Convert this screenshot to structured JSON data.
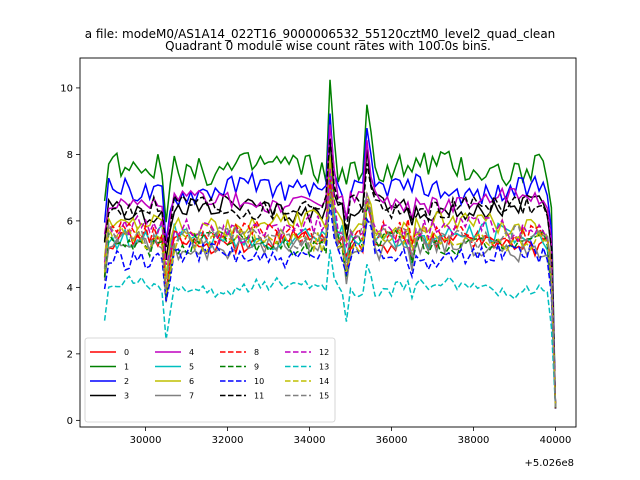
{
  "figure": {
    "suptitle": "a file: modeM0/AS1A14_022T16_9000006532_55120cztM0_level2_quad_clean",
    "x_offset_label": "+5.026e8"
  },
  "chart_data": {
    "type": "line",
    "title": "Quadrant 0 module wise count rates with 100.0s bins.",
    "xlabel": "",
    "ylabel": "",
    "xlim": [
      28400,
      40500
    ],
    "ylim": [
      -0.2,
      10.9
    ],
    "x_ticks": [
      30000,
      32000,
      34000,
      36000,
      38000,
      40000
    ],
    "x_tick_labels": [
      "30000",
      "32000",
      "34000",
      "36000",
      "38000",
      "40000"
    ],
    "y_ticks": [
      0,
      2,
      4,
      6,
      8,
      10
    ],
    "y_tick_labels": [
      "0",
      "2",
      "4",
      "6",
      "8",
      "10"
    ],
    "x_start": 29000,
    "x_step": 100,
    "legend": {
      "location": "lower-left",
      "columns": 4
    },
    "series": [
      {
        "name": "0",
        "color": "#ff0000",
        "dash": "solid",
        "base": 5.35,
        "amp": 0.25,
        "seed": 3
      },
      {
        "name": "1",
        "color": "#008000",
        "dash": "solid",
        "base": 7.6,
        "amp": 0.45,
        "seed": 7
      },
      {
        "name": "2",
        "color": "#0000ff",
        "dash": "solid",
        "base": 6.95,
        "amp": 0.35,
        "seed": 11
      },
      {
        "name": "3",
        "color": "#000000",
        "dash": "solid",
        "base": 6.35,
        "amp": 0.3,
        "seed": 13
      },
      {
        "name": "4",
        "color": "#bf00bf",
        "dash": "solid",
        "base": 6.6,
        "amp": 0.25,
        "seed": 17
      },
      {
        "name": "5",
        "color": "#00bfbf",
        "dash": "solid",
        "base": 5.5,
        "amp": 0.3,
        "seed": 19
      },
      {
        "name": "6",
        "color": "#bfbf00",
        "dash": "solid",
        "base": 5.9,
        "amp": 0.3,
        "seed": 23
      },
      {
        "name": "7",
        "color": "#808080",
        "dash": "solid",
        "base": 5.2,
        "amp": 0.3,
        "seed": 29
      },
      {
        "name": "8",
        "color": "#ff0000",
        "dash": "dashed",
        "base": 5.6,
        "amp": 0.3,
        "seed": 31
      },
      {
        "name": "9",
        "color": "#008000",
        "dash": "dashed",
        "base": 5.3,
        "amp": 0.3,
        "seed": 37
      },
      {
        "name": "10",
        "color": "#0000ff",
        "dash": "dashed",
        "base": 4.95,
        "amp": 0.3,
        "seed": 41
      },
      {
        "name": "11",
        "color": "#000000",
        "dash": "dashed",
        "base": 6.4,
        "amp": 0.3,
        "seed": 43
      },
      {
        "name": "12",
        "color": "#bf00bf",
        "dash": "dashed",
        "base": 5.75,
        "amp": 0.3,
        "seed": 47
      },
      {
        "name": "13",
        "color": "#00bfbf",
        "dash": "dashed",
        "base": 4.0,
        "amp": 0.2,
        "seed": 53
      },
      {
        "name": "14",
        "color": "#bfbf00",
        "dash": "dashed",
        "base": 5.45,
        "amp": 0.3,
        "seed": 59
      },
      {
        "name": "15",
        "color": "#808080",
        "dash": "dashed",
        "base": 5.55,
        "amp": 0.3,
        "seed": 61
      }
    ]
  }
}
